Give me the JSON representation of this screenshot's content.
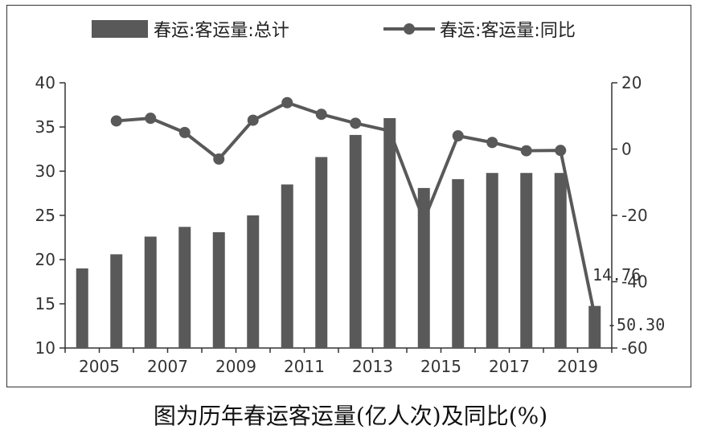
{
  "caption": "图为历年春运客运量(亿人次)及同比(%)",
  "chart_data": {
    "type": "bar+line",
    "legend_position": "top",
    "grid": false,
    "colors": {
      "bar": "#595959",
      "line": "#595959",
      "axis": "#333333"
    },
    "x_tick_labels": [
      "2005",
      "2007",
      "2009",
      "2011",
      "2013",
      "2015",
      "2017",
      "2019"
    ],
    "categories": [
      "2005",
      "2006",
      "2007",
      "2008",
      "2009",
      "2010",
      "2011",
      "2012",
      "2013",
      "2014",
      "2015",
      "2016",
      "2017",
      "2018",
      "2019",
      "2020"
    ],
    "y_left": {
      "ylim": [
        10,
        40
      ],
      "ticks": [
        "10",
        "15",
        "20",
        "25",
        "30",
        "35",
        "40"
      ]
    },
    "y_right": {
      "ylim": [
        -60,
        20
      ],
      "ticks": [
        "20",
        "0",
        "-20",
        "-40",
        "-60"
      ]
    },
    "series": [
      {
        "name": "春运:客运量:总计",
        "type": "bar",
        "axis": "left",
        "values": [
          19,
          20.6,
          22.6,
          23.7,
          23.1,
          25,
          28.5,
          31.6,
          34.1,
          36,
          28.1,
          29.1,
          29.8,
          29.8,
          29.8,
          14.76
        ]
      },
      {
        "name": "春运:客运量:同比",
        "type": "line",
        "axis": "right",
        "values": [
          null,
          8.5,
          9.3,
          5,
          -3,
          8.7,
          14,
          10.5,
          7.8,
          5.5,
          -21.5,
          4,
          2,
          -0.5,
          -0.4,
          -50.3
        ]
      }
    ],
    "annotations": [
      "14.76",
      "-50.30"
    ]
  }
}
